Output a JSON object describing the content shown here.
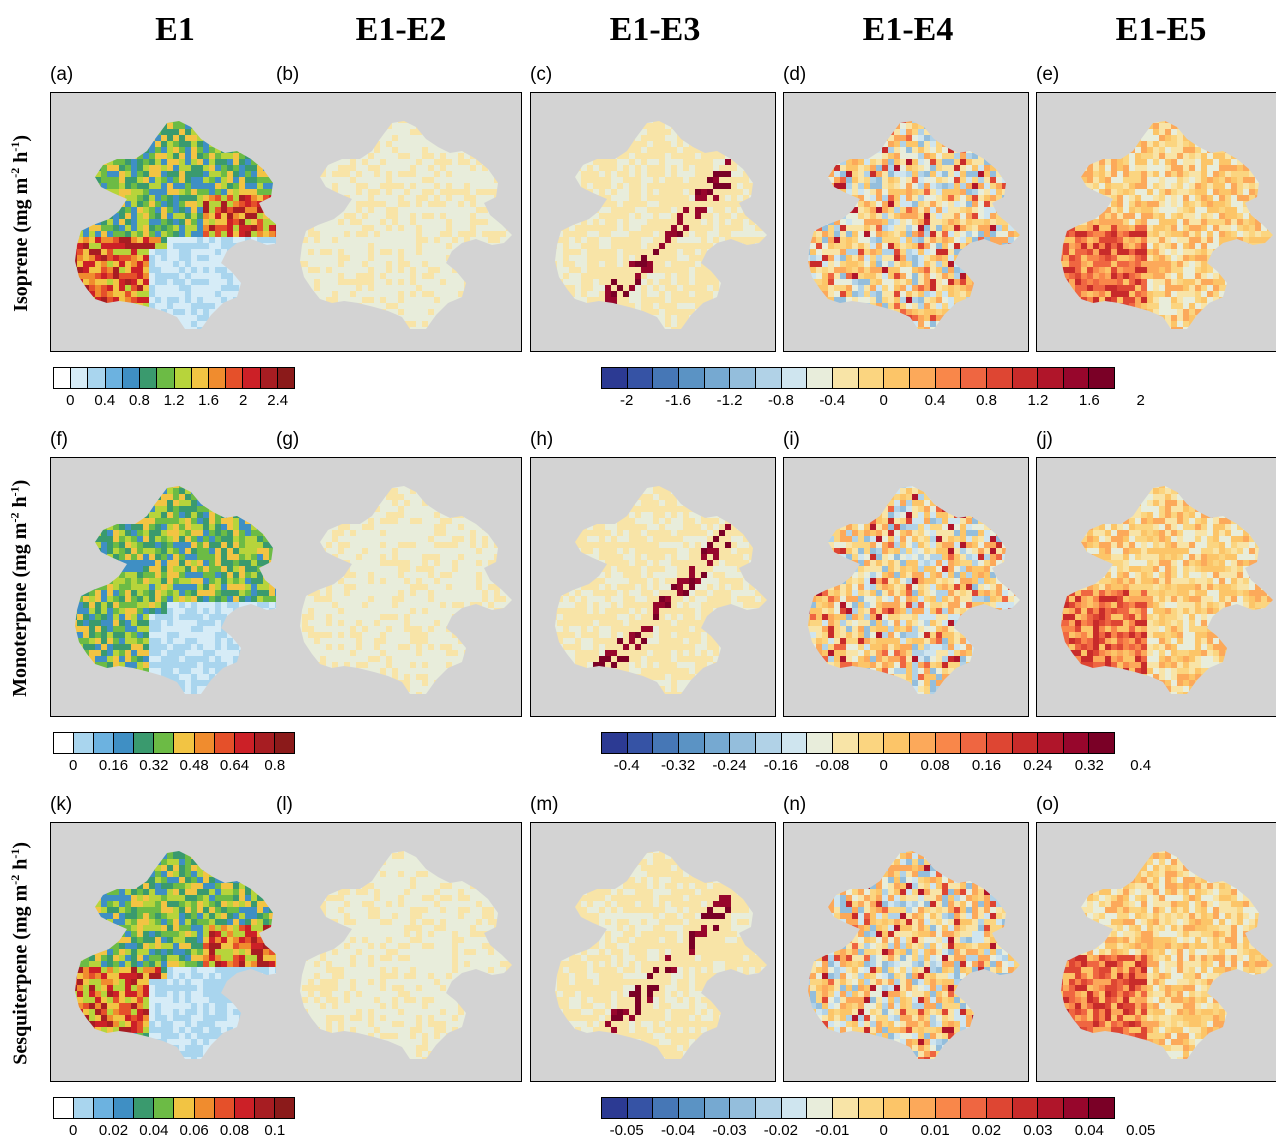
{
  "columns": [
    "E1",
    "E1-E2",
    "E1-E3",
    "E1-E4",
    "E1-E5"
  ],
  "rows": [
    {
      "title_main": "Isoprene (mg m",
      "title_sup1": "-2",
      "title_mid": " h",
      "title_sup2": "-1",
      "title_end": ")",
      "panel_labels": [
        "(a)",
        "(b)",
        "(c)",
        "(d)",
        "(e)"
      ],
      "abs_ticks": [
        "0",
        "0.4",
        "0.8",
        "1.2",
        "1.6",
        "2",
        "2.4"
      ],
      "diff_ticks": [
        "-2",
        "-1.6",
        "-1.2",
        "-0.8",
        "-0.4",
        "0",
        "0.4",
        "0.8",
        "1.2",
        "1.6",
        "2"
      ]
    },
    {
      "title_main": "Monoterpene (mg m",
      "title_sup1": "-2",
      "title_mid": " h",
      "title_sup2": "-1",
      "title_end": ")",
      "panel_labels": [
        "(f)",
        "(g)",
        "(h)",
        "(i)",
        "(j)"
      ],
      "abs_ticks": [
        "0",
        "0.16",
        "0.32",
        "0.48",
        "0.64",
        "0.8"
      ],
      "diff_ticks": [
        "-0.4",
        "-0.32",
        "-0.24",
        "-0.16",
        "-0.08",
        "0",
        "0.08",
        "0.16",
        "0.24",
        "0.32",
        "0.4"
      ]
    },
    {
      "title_main": "Sesquiterpene (mg m",
      "title_sup1": "-2",
      "title_mid": " h",
      "title_sup2": "-1",
      "title_end": ")",
      "panel_labels": [
        "(k)",
        "(l)",
        "(m)",
        "(n)",
        "(o)"
      ],
      "abs_ticks": [
        "0",
        "0.02",
        "0.04",
        "0.06",
        "0.08",
        "0.1"
      ],
      "diff_ticks": [
        "-0.05",
        "-0.04",
        "-0.03",
        "-0.02",
        "-0.01",
        "0",
        "0.01",
        "0.02",
        "0.03",
        "0.04",
        "0.05"
      ]
    }
  ],
  "abs_colors": [
    "#ffffff",
    "#d6ecf7",
    "#a9d5ee",
    "#6cb2e0",
    "#3f8fc4",
    "#3a9a6e",
    "#6cbb45",
    "#b7d43b",
    "#f2c443",
    "#f08c2e",
    "#e5502a",
    "#cc2027",
    "#a71d22",
    "#8b1a1a"
  ],
  "diff_colors": [
    "#2c3a93",
    "#3653a5",
    "#4677b6",
    "#5b93c4",
    "#76a9d1",
    "#94bedc",
    "#b1d2e7",
    "#cfe5ef",
    "#e8eddb",
    "#f8e4a7",
    "#fbd580",
    "#fcc568",
    "#fca95a",
    "#f9874a",
    "#ef6641",
    "#de4633",
    "#c82b2a",
    "#b0152a",
    "#97062c",
    "#7a0026"
  ],
  "background_color": "#d3d3d3",
  "map_base_colors": {
    "E1-E2": "#f3e7c3",
    "E1-E3": "#f4e3b6",
    "E1-E4": "#f5dba6",
    "E1-E5": "#f6d59b"
  }
}
